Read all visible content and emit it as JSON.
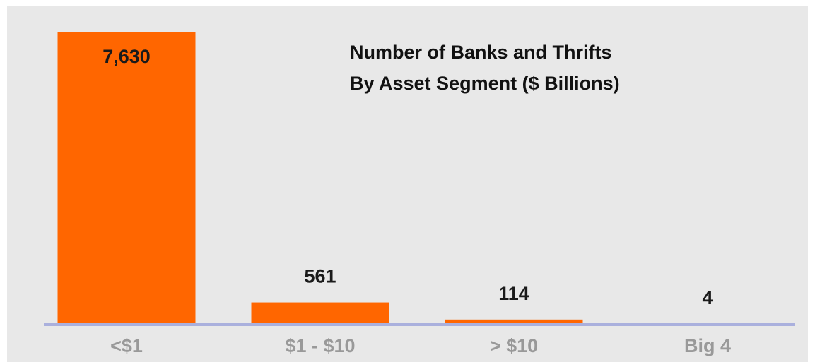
{
  "chart_data": {
    "type": "bar",
    "title": "Number of Banks and Thrifts",
    "subtitle": "By Asset Segment ($ Billions)",
    "categories": [
      "<$1",
      "$1 - $10",
      "> $10",
      "Big 4"
    ],
    "values": [
      7630,
      561,
      114,
      4
    ],
    "value_labels": [
      "7,630",
      "561",
      "114",
      "4"
    ],
    "color": "#ff6600"
  }
}
